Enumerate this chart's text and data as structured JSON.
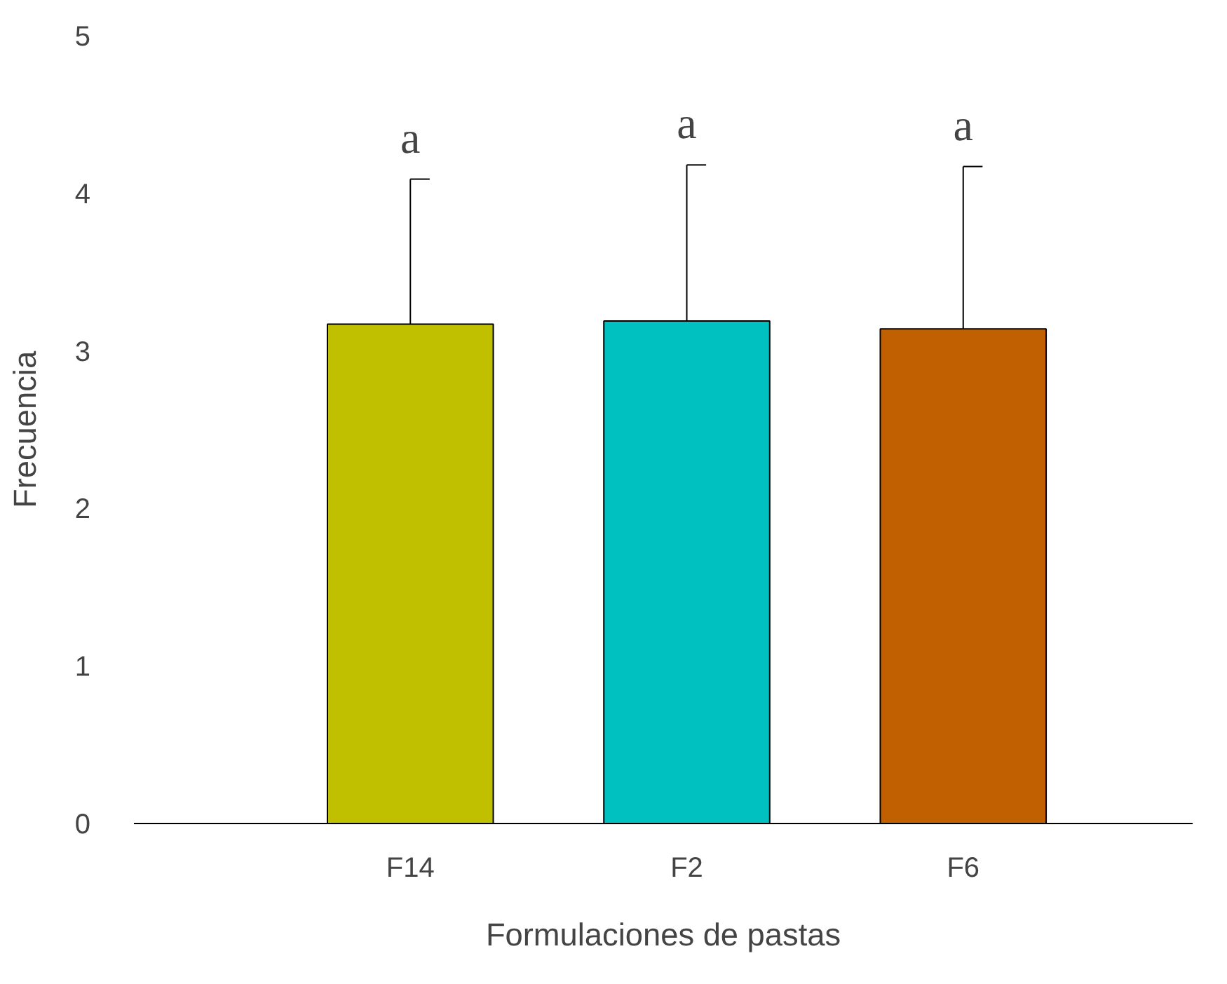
{
  "chart_data": {
    "type": "bar",
    "xlabel": "Formulaciones de pastas",
    "ylabel": "Frecuencia",
    "categories": [
      "F14",
      "F2",
      "F6"
    ],
    "series": [
      {
        "colors": [
          "#c0c000",
          "#00c0c0",
          "#c06000"
        ],
        "values": [
          3.17,
          3.19,
          3.14
        ],
        "errors": [
          [
            3.17,
            4.09
          ],
          [
            3.19,
            4.18
          ],
          [
            3.14,
            4.17
          ]
        ]
      }
    ],
    "ylim": [
      0,
      5
    ],
    "yticks": [
      0,
      1,
      2,
      3,
      4,
      5
    ],
    "grid": false,
    "annotations": [
      "a",
      "a",
      "a"
    ]
  }
}
